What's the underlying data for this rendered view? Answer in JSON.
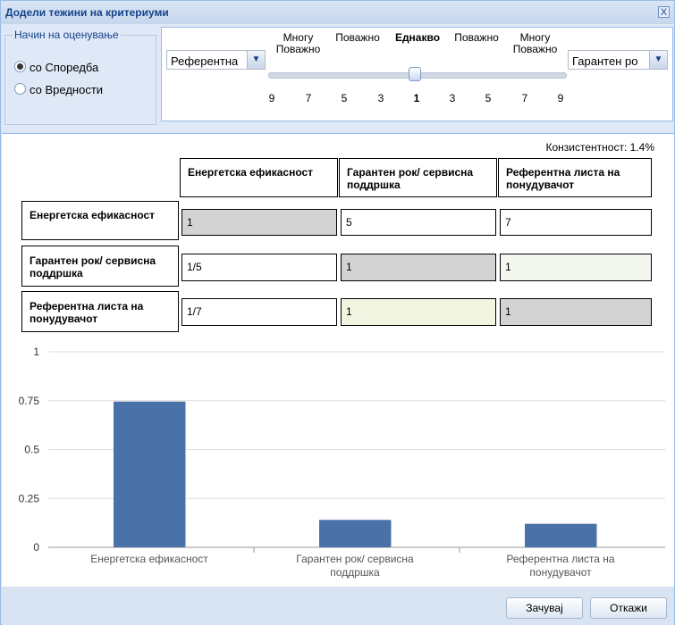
{
  "window": {
    "title": "Додели тежини на критериуми",
    "close_label": "X"
  },
  "method": {
    "legend": "Начин на оценување",
    "options": [
      {
        "label": "со Споредба",
        "selected": true
      },
      {
        "label": "со Вредности",
        "selected": false
      }
    ]
  },
  "comparison": {
    "left_combo": "Референтна",
    "right_combo": "Гарантен ро",
    "scale_labels": [
      "Многу Поважно",
      "Поважно",
      "Еднакво",
      "Поважно",
      "Многу Поважно"
    ],
    "ticks": [
      "9",
      "7",
      "5",
      "3",
      "1",
      "3",
      "5",
      "7",
      "9"
    ],
    "selected_tick": "1"
  },
  "matrix": {
    "consistency": "Конзистентност: 1.4%",
    "columns": [
      "Енергетска ефикасност",
      "Гарантен рок/ сервисна поддршка",
      "Референтна листа на понудувачот"
    ],
    "rows": [
      {
        "label": "Енергетска ефикасност",
        "values": [
          "1",
          "5",
          "7"
        ]
      },
      {
        "label": "Гарантен рок/ сервисна поддршка",
        "values": [
          "1/5",
          "1",
          "1"
        ]
      },
      {
        "label": "Референтна листа на понудувачот",
        "values": [
          "1/7",
          "1",
          "1"
        ]
      }
    ]
  },
  "chart_data": {
    "type": "bar",
    "categories": [
      "Енергетска ефикасност",
      "Гарантен рок/ сервисна поддршка",
      "Референтна листа на понудувачот"
    ],
    "values": [
      0.745,
      0.14,
      0.12
    ],
    "ylim": [
      0,
      1
    ],
    "yticks": [
      "0",
      "0.25",
      "0.5",
      "0.75",
      "1"
    ],
    "bar_color": "#4a72a8",
    "grid": true
  },
  "buttons": {
    "save": "Зачувај",
    "cancel": "Откажи"
  }
}
